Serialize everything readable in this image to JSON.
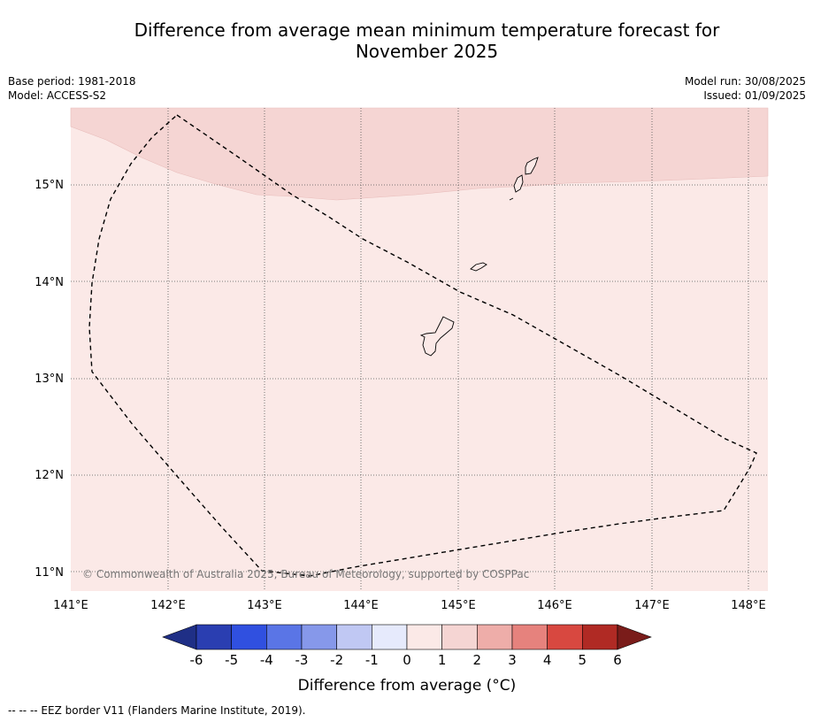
{
  "title": {
    "line1": "Difference from average mean minimum temperature forecast for",
    "line2": "November 2025"
  },
  "meta": {
    "base_period": "Base period: 1981-2018",
    "model": "Model: ACCESS-S2",
    "model_run": "Model run: 30/08/2025",
    "issued": "Issued: 01/09/2025"
  },
  "map": {
    "lon_range": [
      141,
      148.2
    ],
    "lat_range": [
      10.8,
      15.8
    ],
    "lon_ticks": [
      "141°E",
      "142°E",
      "143°E",
      "144°E",
      "145°E",
      "146°E",
      "147°E",
      "148°E"
    ],
    "lat_ticks": [
      "15°N",
      "14°N",
      "13°N",
      "12°N",
      "11°N"
    ],
    "background_color": "#fbe9e7",
    "anomaly_color": "#f5d5d3",
    "copyright": "© Commonwealth of Australia 2025, Bureau of Meteorology, supported by COSPPac"
  },
  "colorbar": {
    "title": "Difference from average (°C)",
    "ticks": [
      "-6",
      "-5",
      "-4",
      "-3",
      "-2",
      "-1",
      "0",
      "1",
      "2",
      "3",
      "4",
      "5",
      "6"
    ],
    "colors": [
      "#2a3eb1",
      "#3050e0",
      "#5a75e6",
      "#8698ea",
      "#c0c8f3",
      "#e6eafc",
      "#fbe9e7",
      "#f5d5d3",
      "#eeada9",
      "#e6827d",
      "#d84840",
      "#b02a24"
    ],
    "under_color": "#1f2f86",
    "over_color": "#7a1c1a"
  },
  "legend": {
    "eez_label": "--  --  -- EEZ border V11 (Flanders Marine Institute, 2019)."
  }
}
